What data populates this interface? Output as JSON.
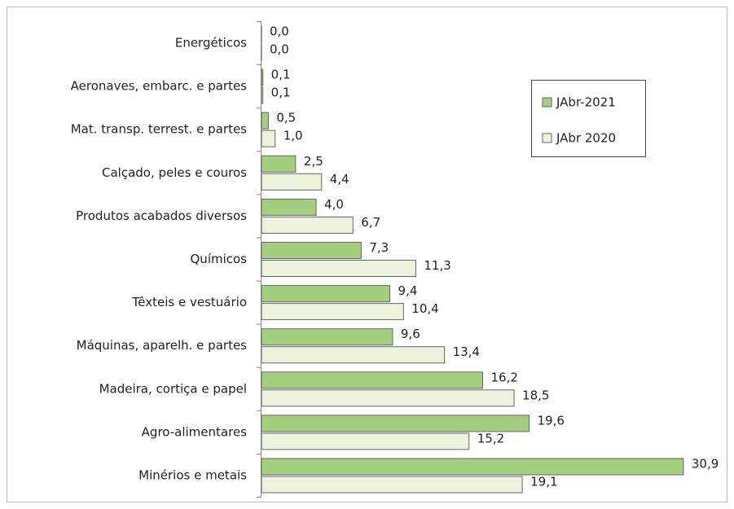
{
  "chart_data": {
    "type": "bar",
    "orientation": "horizontal",
    "categories": [
      "Energéticos",
      "Aeronaves, embarc. e partes",
      "Mat. transp. terrest. e partes",
      "Calçado, peles e couros",
      "Produtos acabados diversos",
      "Químicos",
      "Têxteis e vestuário",
      "Máquinas, aparelh. e partes",
      "Madeira, cortiça e papel",
      "Agro-alimentares",
      "Minérios e metais"
    ],
    "series": [
      {
        "name": "JAbr-2021",
        "color": "#a3cf7f",
        "values": [
          0.0,
          0.1,
          0.5,
          2.5,
          4.0,
          7.3,
          9.4,
          9.6,
          16.2,
          19.6,
          30.9
        ],
        "value_labels": [
          "0,0",
          "0,1",
          "0,5",
          "2,5",
          "4,0",
          "7,3",
          "9,4",
          "9,6",
          "16,2",
          "19,6",
          "30,9"
        ]
      },
      {
        "name": "JAbr 2020",
        "color": "#ebf3dd",
        "values": [
          0.0,
          0.1,
          1.0,
          4.4,
          6.7,
          11.3,
          10.4,
          13.4,
          18.5,
          15.2,
          19.1
        ],
        "value_labels": [
          "0,0",
          "0,1",
          "1,0",
          "4,4",
          "6,7",
          "11,3",
          "10,4",
          "13,4",
          "18,5",
          "15,2",
          "19,1"
        ]
      }
    ],
    "legend": "right"
  }
}
